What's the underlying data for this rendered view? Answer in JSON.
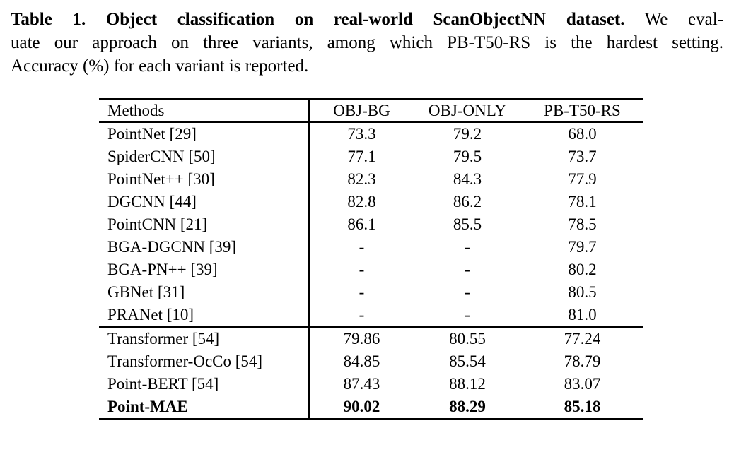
{
  "caption": {
    "line1_bold": "Table 1. Object classification on real-world ScanObjectNN dataset.",
    "line1_rest": " We eval-",
    "line2": "uate our approach on three variants, among which PB-T50-RS is the hardest setting.",
    "line3": "Accuracy (%) for each variant is reported."
  },
  "table": {
    "columns": [
      "Methods",
      "OBJ-BG",
      "OBJ-ONLY",
      "PB-T50-RS"
    ],
    "groups": [
      {
        "rows": [
          {
            "method": "PointNet [29]",
            "values": [
              "73.3",
              "79.2",
              "68.0"
            ],
            "bold": false
          },
          {
            "method": "SpiderCNN [50]",
            "values": [
              "77.1",
              "79.5",
              "73.7"
            ],
            "bold": false
          },
          {
            "method": "PointNet++ [30]",
            "values": [
              "82.3",
              "84.3",
              "77.9"
            ],
            "bold": false
          },
          {
            "method": "DGCNN [44]",
            "values": [
              "82.8",
              "86.2",
              "78.1"
            ],
            "bold": false
          },
          {
            "method": "PointCNN [21]",
            "values": [
              "86.1",
              "85.5",
              "78.5"
            ],
            "bold": false
          },
          {
            "method": "BGA-DGCNN [39]",
            "values": [
              "-",
              "-",
              "79.7"
            ],
            "bold": false
          },
          {
            "method": "BGA-PN++ [39]",
            "values": [
              "-",
              "-",
              "80.2"
            ],
            "bold": false
          },
          {
            "method": "GBNet [31]",
            "values": [
              "-",
              "-",
              "80.5"
            ],
            "bold": false
          },
          {
            "method": "PRANet [10]",
            "values": [
              "-",
              "-",
              "81.0"
            ],
            "bold": false
          }
        ]
      },
      {
        "rows": [
          {
            "method": "Transformer [54]",
            "values": [
              "79.86",
              "80.55",
              "77.24"
            ],
            "bold": false
          },
          {
            "method": "Transformer-OcCo [54]",
            "values": [
              "84.85",
              "85.54",
              "78.79"
            ],
            "bold": false
          },
          {
            "method": "Point-BERT [54]",
            "values": [
              "87.43",
              "88.12",
              "83.07"
            ],
            "bold": false
          },
          {
            "method": "Point-MAE",
            "values": [
              "90.02",
              "88.29",
              "85.18"
            ],
            "bold": true
          }
        ]
      }
    ]
  }
}
